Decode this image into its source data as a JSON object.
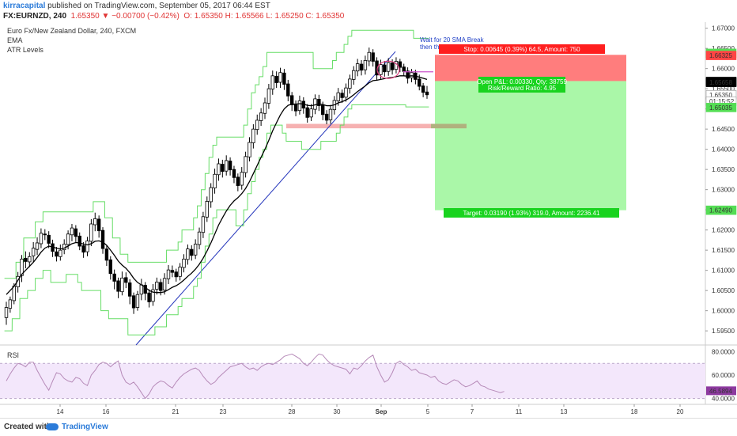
{
  "header": {
    "user": "kirracapital",
    "published": "published on TradingView.com, September 05, 2017 06:44 EST",
    "symbol": "FX:EURNZD, 240",
    "price": "1.65350",
    "change": "−0.00700 (−0.42%)",
    "open": "O: 1.65350",
    "high": "H: 1.65566",
    "low": "L: 1.65250",
    "close": "C: 1.65350"
  },
  "legend": {
    "title": "Euro Fx/New Zealand Dollar, 240, FXCM",
    "ema": "EMA",
    "atr": "ATR Levels"
  },
  "rsi_label": "RSI",
  "footer": {
    "created": "Created with",
    "brand": "TradingView"
  },
  "colors": {
    "up": "#ffffff",
    "down": "#000000",
    "ema": "#000000",
    "atr": "#66dd66",
    "trend": "#2233bb",
    "stop_zone": "#ff6f6f",
    "target_zone": "#aaf7a8",
    "rsi": "#b68ab8",
    "rsi_band": "#f3e7fb"
  },
  "chart_data": {
    "type": "candlestick",
    "symbol": "FX:EURNZD",
    "interval": "240",
    "x_ticks": [
      "14",
      "16",
      "21",
      "23",
      "28",
      "30",
      "Sep",
      "5",
      "7",
      "11",
      "13",
      "18",
      "20"
    ],
    "y_ticks": [
      "1.67000",
      "1.66500",
      "1.66000",
      "1.65500",
      "1.65000",
      "1.64500",
      "1.64000",
      "1.63500",
      "1.63000",
      "1.62500",
      "1.62000",
      "1.61500",
      "1.61000",
      "1.60500",
      "1.60000",
      "1.59500"
    ],
    "ylim": [
      1.5915,
      1.6715
    ],
    "price_badges": [
      {
        "label": "1.66378",
        "color": "#55dd55",
        "value": 1.66378
      },
      {
        "label": "1.66325",
        "color": "#ff4444",
        "value": 1.66325
      },
      {
        "label": "1.65680",
        "color": "#000000",
        "value": 1.6568
      },
      {
        "label": "1.65658",
        "color": "#000000",
        "value": 1.65658
      },
      {
        "label": "1.65350",
        "color": "#ffffff",
        "value": 1.6535
      },
      {
        "label": "01:15:52",
        "color": "#ffffff",
        "value": 1.6519
      },
      {
        "label": "1.65035",
        "color": "#55dd55",
        "value": 1.65035
      },
      {
        "label": "1.62490",
        "color": "#55dd55",
        "value": 1.6249
      }
    ],
    "position": {
      "entry": 1.6569,
      "stop": 1.6634,
      "target": 1.6249,
      "stop_text": "Stop: 0.00645 (0.39%) 64.5, Amount: 750",
      "pnl_text": "Open P&L: 0.00330, Qty: 38759",
      "rr_text": "Risk/Reward Ratio: 4.95",
      "target_text": "Target: 0.03190 (1.93%) 319.0, Amount: 2236.41"
    },
    "annotation_lines": [
      "Wait for 20 SMA Break",
      "then think how"
    ],
    "rsi": {
      "ylim": [
        35,
        85
      ],
      "ticks": [
        "80.0000",
        "60.0000",
        "40.0000"
      ],
      "band": [
        40,
        70
      ],
      "last": "46.5894",
      "values": [
        55,
        61,
        66,
        70,
        69,
        67,
        71,
        71,
        64,
        58,
        52,
        47,
        55,
        62,
        61,
        57,
        55,
        54,
        58,
        57,
        53,
        51,
        60,
        64,
        69,
        71,
        70,
        67,
        70,
        72,
        60,
        54,
        52,
        54,
        50,
        45,
        40,
        44,
        50,
        53,
        55,
        54,
        51,
        49,
        54,
        58,
        61,
        63,
        65,
        66,
        64,
        59,
        55,
        52,
        54,
        58,
        61,
        64,
        67,
        68,
        69,
        70,
        67,
        65,
        66,
        64,
        67,
        69,
        70,
        69,
        71,
        73,
        76,
        77,
        78,
        76,
        74,
        70,
        68,
        71,
        75,
        78,
        77,
        73,
        70,
        68,
        67,
        66,
        65,
        61,
        66,
        65,
        68,
        72,
        75,
        77,
        67,
        60,
        54,
        56,
        62,
        70,
        72,
        69,
        67,
        64,
        65,
        62,
        61,
        60,
        58,
        59,
        55,
        53,
        52,
        54,
        56,
        55,
        52,
        50,
        51,
        53,
        55,
        51,
        50,
        48,
        47,
        46,
        45,
        46
      ]
    },
    "candles": [
      [
        1.5983,
        1.6008,
        1.5965,
        1.6022
      ],
      [
        1.6006,
        1.6027,
        1.5995,
        1.6035
      ],
      [
        1.6025,
        1.6061,
        1.6016,
        1.6068
      ],
      [
        1.6059,
        1.6085,
        1.6045,
        1.6096
      ],
      [
        1.6087,
        1.6128,
        1.6071,
        1.6138
      ],
      [
        1.613,
        1.6122,
        1.6105,
        1.6147
      ],
      [
        1.6121,
        1.6134,
        1.6108,
        1.6145
      ],
      [
        1.6136,
        1.6155,
        1.612,
        1.617
      ],
      [
        1.6152,
        1.6168,
        1.6138,
        1.6182
      ],
      [
        1.6166,
        1.6192,
        1.6155,
        1.6204
      ],
      [
        1.619,
        1.6188,
        1.6175,
        1.6202
      ],
      [
        1.6187,
        1.6167,
        1.6155,
        1.6197
      ],
      [
        1.6166,
        1.6147,
        1.6133,
        1.6176
      ],
      [
        1.6146,
        1.6135,
        1.6122,
        1.6158
      ],
      [
        1.6134,
        1.615,
        1.6124,
        1.6164
      ],
      [
        1.6151,
        1.6165,
        1.614,
        1.6177
      ],
      [
        1.6164,
        1.619,
        1.6152,
        1.6199
      ],
      [
        1.6188,
        1.6205,
        1.6172,
        1.6215
      ],
      [
        1.6203,
        1.6184,
        1.617,
        1.6212
      ],
      [
        1.6185,
        1.616,
        1.615,
        1.6194
      ],
      [
        1.6161,
        1.6145,
        1.6131,
        1.617
      ],
      [
        1.6146,
        1.6173,
        1.6135,
        1.6183
      ],
      [
        1.6172,
        1.6215,
        1.616,
        1.6227
      ],
      [
        1.6213,
        1.6228,
        1.6197,
        1.6243
      ],
      [
        1.6227,
        1.6198,
        1.6181,
        1.6236
      ],
      [
        1.6199,
        1.6154,
        1.6141,
        1.6207
      ],
      [
        1.6153,
        1.6125,
        1.6111,
        1.6162
      ],
      [
        1.6126,
        1.6092,
        1.6077,
        1.6135
      ],
      [
        1.6091,
        1.6073,
        1.6053,
        1.6102
      ],
      [
        1.6074,
        1.6048,
        1.6031,
        1.6082
      ],
      [
        1.6047,
        1.6081,
        1.6038,
        1.6097
      ],
      [
        1.6082,
        1.607,
        1.6056,
        1.6095
      ],
      [
        1.6069,
        1.6036,
        1.6016,
        1.6078
      ],
      [
        1.6037,
        1.6007,
        1.5992,
        1.6045
      ],
      [
        1.6008,
        1.604,
        1.6,
        1.6049
      ],
      [
        1.6041,
        1.6064,
        1.6026,
        1.6079
      ],
      [
        1.6063,
        1.6043,
        1.6026,
        1.6071
      ],
      [
        1.6044,
        1.6022,
        1.6008,
        1.6053
      ],
      [
        1.6023,
        1.6052,
        1.6012,
        1.6066
      ],
      [
        1.6053,
        1.6071,
        1.604,
        1.6082
      ],
      [
        1.607,
        1.605,
        1.6038,
        1.6079
      ],
      [
        1.6051,
        1.608,
        1.604,
        1.6093
      ],
      [
        1.6079,
        1.6101,
        1.6066,
        1.6113
      ],
      [
        1.61,
        1.6095,
        1.6083,
        1.6112
      ],
      [
        1.6096,
        1.6084,
        1.6072,
        1.6104
      ],
      [
        1.6085,
        1.6108,
        1.6075,
        1.6118
      ],
      [
        1.6107,
        1.6128,
        1.6095,
        1.614
      ],
      [
        1.6127,
        1.6153,
        1.6114,
        1.6164
      ],
      [
        1.6152,
        1.6137,
        1.6124,
        1.6162
      ],
      [
        1.6138,
        1.6165,
        1.6128,
        1.6177
      ],
      [
        1.6164,
        1.6195,
        1.6152,
        1.6206
      ],
      [
        1.6194,
        1.6233,
        1.618,
        1.6245
      ],
      [
        1.6232,
        1.6271,
        1.622,
        1.6283
      ],
      [
        1.627,
        1.6305,
        1.6255,
        1.6316
      ],
      [
        1.6304,
        1.6338,
        1.629,
        1.6352
      ],
      [
        1.6337,
        1.6364,
        1.6322,
        1.6377
      ],
      [
        1.6363,
        1.6345,
        1.633,
        1.6374
      ],
      [
        1.6346,
        1.6372,
        1.6335,
        1.6385
      ],
      [
        1.6371,
        1.6349,
        1.6335,
        1.638
      ],
      [
        1.635,
        1.633,
        1.6316,
        1.6359
      ],
      [
        1.6331,
        1.631,
        1.6296,
        1.634
      ],
      [
        1.6311,
        1.6343,
        1.63,
        1.6356
      ],
      [
        1.6342,
        1.6382,
        1.633,
        1.6394
      ],
      [
        1.6381,
        1.6417,
        1.637,
        1.643
      ],
      [
        1.6416,
        1.645,
        1.6402,
        1.6462
      ],
      [
        1.6449,
        1.6472,
        1.6436,
        1.6486
      ],
      [
        1.6471,
        1.649,
        1.6458,
        1.6502
      ],
      [
        1.6489,
        1.6515,
        1.6475,
        1.6528
      ],
      [
        1.6514,
        1.655,
        1.65,
        1.6562
      ],
      [
        1.6549,
        1.6582,
        1.6535,
        1.6595
      ],
      [
        1.6581,
        1.6565,
        1.6552,
        1.6593
      ],
      [
        1.6566,
        1.659,
        1.6552,
        1.6602
      ],
      [
        1.6589,
        1.6561,
        1.6547,
        1.6599
      ],
      [
        1.6562,
        1.6532,
        1.6519,
        1.6572
      ],
      [
        1.6533,
        1.651,
        1.6495,
        1.6542
      ],
      [
        1.6511,
        1.6495,
        1.6482,
        1.6521
      ],
      [
        1.6496,
        1.652,
        1.6486,
        1.6533
      ],
      [
        1.6519,
        1.6502,
        1.6488,
        1.6529
      ],
      [
        1.6503,
        1.6479,
        1.6466,
        1.6512
      ],
      [
        1.648,
        1.65,
        1.647,
        1.6512
      ],
      [
        1.6499,
        1.6525,
        1.6487,
        1.6536
      ],
      [
        1.6524,
        1.6508,
        1.6495,
        1.6535
      ],
      [
        1.6509,
        1.6486,
        1.6472,
        1.6518
      ],
      [
        1.6487,
        1.6472,
        1.6462,
        1.6497
      ],
      [
        1.6473,
        1.6499,
        1.6463,
        1.651
      ],
      [
        1.6498,
        1.6521,
        1.6486,
        1.6532
      ],
      [
        1.652,
        1.654,
        1.6508,
        1.6552
      ],
      [
        1.6539,
        1.6528,
        1.6515,
        1.6548
      ],
      [
        1.6529,
        1.6552,
        1.6518,
        1.6563
      ],
      [
        1.6551,
        1.6574,
        1.6538,
        1.6585
      ],
      [
        1.6573,
        1.6595,
        1.656,
        1.6606
      ],
      [
        1.6594,
        1.6612,
        1.6581,
        1.6624
      ],
      [
        1.6611,
        1.6596,
        1.6583,
        1.6621
      ],
      [
        1.6597,
        1.662,
        1.6585,
        1.6632
      ],
      [
        1.6619,
        1.664,
        1.6606,
        1.6652
      ],
      [
        1.6639,
        1.6618,
        1.6605,
        1.6648
      ],
      [
        1.6619,
        1.6584,
        1.657,
        1.6628
      ],
      [
        1.6585,
        1.661,
        1.6574,
        1.6622
      ],
      [
        1.6609,
        1.6592,
        1.658,
        1.6619
      ],
      [
        1.6593,
        1.6615,
        1.6582,
        1.6626
      ],
      [
        1.6614,
        1.6597,
        1.6585,
        1.6623
      ],
      [
        1.6598,
        1.6618,
        1.6588,
        1.6628
      ],
      [
        1.6617,
        1.6603,
        1.6591,
        1.6624
      ],
      [
        1.6604,
        1.6593,
        1.6582,
        1.6612
      ],
      [
        1.6594,
        1.6576,
        1.6563,
        1.6603
      ],
      [
        1.6577,
        1.659,
        1.6566,
        1.6599
      ],
      [
        1.6589,
        1.6573,
        1.6561,
        1.6597
      ],
      [
        1.6574,
        1.6556,
        1.6546,
        1.6585
      ],
      [
        1.6557,
        1.6541,
        1.6529,
        1.6564
      ],
      [
        1.6542,
        1.6535,
        1.6525,
        1.6557
      ]
    ],
    "ema": [
      1.604,
      1.605,
      1.606,
      1.6075,
      1.609,
      1.61,
      1.611,
      1.612,
      1.6132,
      1.6145,
      1.6155,
      1.616,
      1.6158,
      1.6155,
      1.6153,
      1.6155,
      1.616,
      1.6166,
      1.6169,
      1.6168,
      1.6165,
      1.6163,
      1.6166,
      1.6172,
      1.6173,
      1.617,
      1.6162,
      1.615,
      1.6137,
      1.6123,
      1.6113,
      1.6105,
      1.6094,
      1.608,
      1.607,
      1.6064,
      1.6058,
      1.605,
      1.6046,
      1.6045,
      1.6045,
      1.6047,
      1.6052,
      1.6058,
      1.6062,
      1.6068,
      1.6076,
      1.6085,
      1.6093,
      1.6103,
      1.6115,
      1.613,
      1.6148,
      1.6168,
      1.619,
      1.6212,
      1.623,
      1.6247,
      1.6261,
      1.6272,
      1.628,
      1.629,
      1.6303,
      1.632,
      1.634,
      1.636,
      1.638,
      1.64,
      1.6422,
      1.6446,
      1.6466,
      1.6485,
      1.65,
      1.6509,
      1.6512,
      1.6512,
      1.6513,
      1.6512,
      1.6509,
      1.6508,
      1.651,
      1.6512,
      1.6511,
      1.6508,
      1.6508,
      1.651,
      1.6515,
      1.6518,
      1.6522,
      1.6528,
      1.6535,
      1.6543,
      1.655,
      1.6557,
      1.6565,
      1.657,
      1.6571,
      1.6573,
      1.6575,
      1.6577,
      1.6578,
      1.658,
      1.6582,
      1.6582,
      1.6581,
      1.6582,
      1.6581,
      1.6579,
      1.6576,
      1.6573
    ],
    "atr_upper": [
      1.608,
      1.608,
      1.608,
      1.612,
      1.612,
      1.618,
      1.618,
      1.618,
      1.622,
      1.622,
      1.6245,
      1.6245,
      1.6245,
      1.6245,
      1.6245,
      1.6245,
      1.6245,
      1.6245,
      1.6245,
      1.6245,
      1.6245,
      1.6245,
      1.6245,
      1.627,
      1.627,
      1.627,
      1.623,
      1.623,
      1.618,
      1.618,
      1.614,
      1.614,
      1.612,
      1.612,
      1.612,
      1.612,
      1.612,
      1.612,
      1.612,
      1.612,
      1.612,
      1.612,
      1.615,
      1.615,
      1.615,
      1.617,
      1.62,
      1.62,
      1.62,
      1.623,
      1.626,
      1.63,
      1.634,
      1.638,
      1.641,
      1.643,
      1.643,
      1.643,
      1.643,
      1.643,
      1.643,
      1.643,
      1.646,
      1.65,
      1.654,
      1.656,
      1.658,
      1.6605,
      1.664,
      1.664,
      1.664,
      1.664,
      1.664,
      1.664,
      1.664,
      1.664,
      1.664,
      1.664,
      1.664,
      1.664,
      1.66,
      1.66,
      1.66,
      1.66,
      1.66,
      1.662,
      1.664,
      1.664,
      1.666,
      1.668,
      1.6695,
      1.6695,
      1.6695,
      1.6695,
      1.6695,
      1.6695,
      1.6695,
      1.6695,
      1.6695,
      1.6695,
      1.6695,
      1.6695,
      1.6695,
      1.6695,
      1.6695,
      1.6695,
      1.6675,
      1.6675,
      1.6675,
      1.6675
    ],
    "atr_lower": [
      1.595,
      1.595,
      1.598,
      1.598,
      1.603,
      1.603,
      1.605,
      1.605,
      1.608,
      1.608,
      1.61,
      1.61,
      1.607,
      1.607,
      1.607,
      1.607,
      1.609,
      1.609,
      1.609,
      1.607,
      1.605,
      1.605,
      1.605,
      1.605,
      1.605,
      1.6,
      1.6,
      1.598,
      1.598,
      1.598,
      1.598,
      1.598,
      1.594,
      1.594,
      1.594,
      1.594,
      1.594,
      1.594,
      1.594,
      1.596,
      1.596,
      1.596,
      1.599,
      1.599,
      1.599,
      1.601,
      1.603,
      1.603,
      1.603,
      1.606,
      1.608,
      1.612,
      1.616,
      1.619,
      1.623,
      1.625,
      1.625,
      1.625,
      1.625,
      1.625,
      1.621,
      1.621,
      1.625,
      1.629,
      1.632,
      1.635,
      1.638,
      1.64,
      1.644,
      1.646,
      1.646,
      1.646,
      1.644,
      1.642,
      1.642,
      1.642,
      1.642,
      1.64,
      1.64,
      1.64,
      1.64,
      1.64,
      1.642,
      1.642,
      1.642,
      1.642,
      1.644,
      1.646,
      1.648,
      1.65,
      1.651,
      1.651,
      1.651,
      1.651,
      1.651,
      1.651,
      1.651,
      1.651,
      1.651,
      1.651,
      1.651,
      1.651,
      1.651,
      1.651,
      1.6505,
      1.6505,
      1.6505,
      1.6505,
      1.6505,
      1.6505
    ]
  }
}
